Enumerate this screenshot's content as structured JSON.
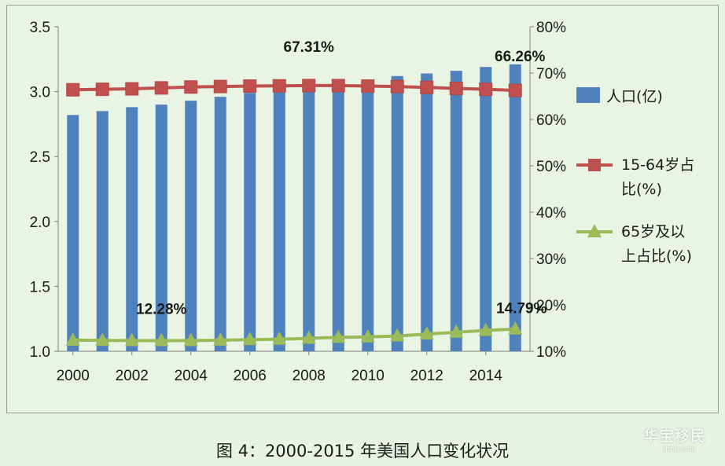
{
  "chart_data": {
    "type": "bar",
    "title": "",
    "caption": "图 4：2000-2015 年美国人口变化状况",
    "x": [
      2000,
      2001,
      2002,
      2003,
      2004,
      2005,
      2006,
      2007,
      2008,
      2009,
      2010,
      2011,
      2012,
      2013,
      2014,
      2015
    ],
    "x_tick_labels": [
      "2000",
      "2002",
      "2004",
      "2006",
      "2008",
      "2010",
      "2012",
      "2014"
    ],
    "y_left": {
      "range": [
        1.0,
        3.5
      ],
      "ticks": [
        "1.0",
        "1.5",
        "2.0",
        "2.5",
        "3.0",
        "3.5"
      ]
    },
    "y_right": {
      "range": [
        10,
        80
      ],
      "ticks": [
        "10%",
        "20%",
        "30%",
        "40%",
        "50%",
        "60%",
        "70%",
        "80%"
      ]
    },
    "grid": false,
    "legend_position": "right",
    "series": [
      {
        "name": "人口(亿)",
        "kind": "bar",
        "axis": "left",
        "color": "#4f81bd",
        "values": [
          2.82,
          2.85,
          2.88,
          2.9,
          2.93,
          2.96,
          2.99,
          3.02,
          3.04,
          3.07,
          3.09,
          3.12,
          3.14,
          3.16,
          3.19,
          3.21
        ]
      },
      {
        "name": "15-64岁占比(%)",
        "legend_lines": [
          "15-64岁占",
          "比(%)"
        ],
        "kind": "line",
        "marker": "square",
        "axis": "right",
        "color": "#c0504d",
        "values": [
          66.4,
          66.5,
          66.6,
          66.8,
          67.0,
          67.1,
          67.2,
          67.25,
          67.31,
          67.3,
          67.2,
          67.1,
          66.9,
          66.7,
          66.5,
          66.26
        ]
      },
      {
        "name": "65岁及以上占比(%)",
        "legend_lines": [
          "65岁及以",
          "上占比(%)"
        ],
        "kind": "line",
        "marker": "triangle",
        "axis": "right",
        "color": "#9bbb59",
        "values": [
          12.4,
          12.35,
          12.3,
          12.28,
          12.3,
          12.4,
          12.5,
          12.6,
          12.8,
          13.0,
          13.1,
          13.3,
          13.7,
          14.1,
          14.5,
          14.79
        ]
      }
    ],
    "annotations": [
      {
        "text": "67.31%",
        "series": 1,
        "index": 8
      },
      {
        "text": "66.26%",
        "series": 1,
        "index": 15
      },
      {
        "text": "12.28%",
        "series": 2,
        "index": 3
      },
      {
        "text": "14.79%",
        "series": 2,
        "index": 15
      }
    ]
  },
  "watermark": {
    "main": "华宝移民",
    "sub": "ihbb.com"
  }
}
